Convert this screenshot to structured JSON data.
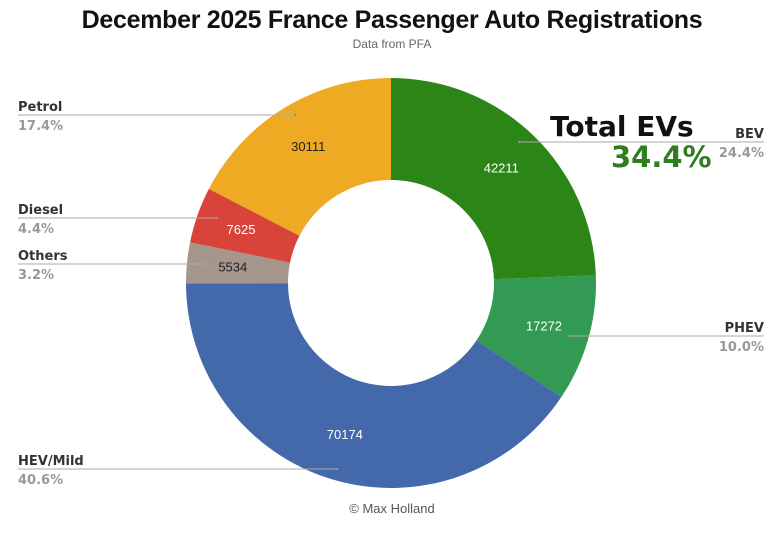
{
  "chart_data": {
    "type": "pie",
    "variant": "donut",
    "title": "December 2025 France Passenger Auto Registrations",
    "subtitle": "Data from PFA",
    "credit": "© Max Holland",
    "start_angle_deg": 0,
    "direction": "clockwise",
    "slices": [
      {
        "name": "BEV",
        "value": 42211,
        "percent": "24.4%",
        "color": "#2c8517",
        "value_color": "#ffffff",
        "label_side": "right"
      },
      {
        "name": "PHEV",
        "value": 17272,
        "percent": "10.0%",
        "color": "#329a52",
        "value_color": "#ffffff",
        "label_side": "right"
      },
      {
        "name": "HEV/Mild",
        "value": 70174,
        "percent": "40.6%",
        "color": "#4469aa",
        "value_color": "#ffffff",
        "label_side": "left"
      },
      {
        "name": "Others",
        "value": 5534,
        "percent": "3.2%",
        "color": "#a5968c",
        "value_color": "#222222",
        "label_side": "left"
      },
      {
        "name": "Diesel",
        "value": 7625,
        "percent": "4.4%",
        "color": "#d8433a",
        "value_color": "#ffffff",
        "label_side": "left"
      },
      {
        "name": "Petrol",
        "value": 30111,
        "percent": "17.4%",
        "color": "#eeaa23",
        "value_color": "#222222",
        "label_side": "left"
      }
    ],
    "annotation": {
      "label": "Total EVs",
      "value": "34.4%",
      "color": "#2e7d1f"
    }
  }
}
